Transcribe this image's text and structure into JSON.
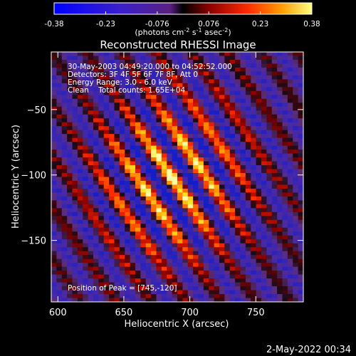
{
  "chart_data": {
    "type": "heatmap",
    "title": "Reconstructed RHESSI Image",
    "xlabel": "Heliocentric X (arcsec)",
    "ylabel": "Heliocentric Y (arcsec)",
    "xlim": [
      595,
      786
    ],
    "ylim": [
      -197,
      -6
    ],
    "x_ticks": [
      600,
      650,
      700,
      750
    ],
    "y_ticks": [
      -50,
      -100,
      -150
    ],
    "colorbar": {
      "range": [
        -0.38,
        0.38
      ],
      "ticks": [
        "-0.38",
        "-0.23",
        "-0.076",
        "0.076",
        "0.23",
        "0.38"
      ],
      "unit_label": {
        "base": "(photons cm",
        "sup1": "-2",
        "mid1": " s",
        "sup2": "-1",
        "mid2": " asec",
        "sup3": "-2",
        "tail": ")"
      }
    },
    "annotations": [
      "30-May-2003 04:49:20.000 to 04:52:52.000",
      "Detectors: 3F 4F 5F 6F 7F 8F, Att 0",
      "Energy Range: 3.0 - 6.0 keV",
      "Clean    Total counts: 1.65E+04"
    ],
    "peak_text": "Position of Peak = [745,-120]",
    "peak": [
      745,
      -120
    ],
    "grid": false,
    "legend": "none",
    "colors": {
      "colormap": [
        "#000000",
        "#1f1fb0",
        "#7a3da0",
        "#b02020",
        "#ff2a00",
        "#ff8a00",
        "#ffe000",
        "#ffffff"
      ],
      "background": "#000000",
      "text": "#ffffff"
    }
  },
  "timestamp": "2-May-2022 00:34"
}
